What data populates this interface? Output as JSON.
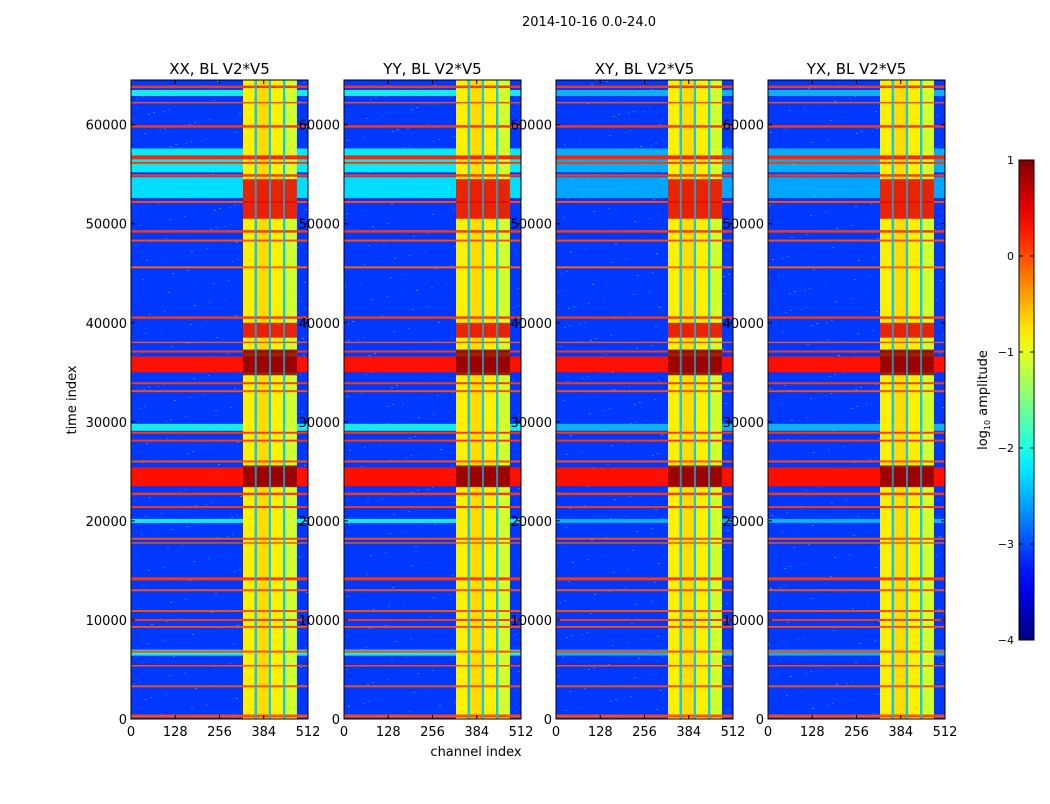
{
  "chart_data": {
    "type": "heatmap",
    "title": "2014-10-16 0.0-24.0",
    "xlabel": "channel index",
    "ylabel": "time index",
    "xlim": [
      0,
      512
    ],
    "ylim": [
      0,
      64512
    ],
    "xticks": [
      "0",
      "128",
      "256",
      "384",
      "512"
    ],
    "xtick_values": [
      0,
      128,
      256,
      384,
      512
    ],
    "yticks": [
      "0",
      "10000",
      "20000",
      "30000",
      "40000",
      "50000",
      "60000"
    ],
    "ytick_values": [
      0,
      10000,
      20000,
      30000,
      40000,
      50000,
      60000
    ],
    "panels": [
      {
        "title": "XX, BL V2*V5"
      },
      {
        "title": "YY, BL V2*V5"
      },
      {
        "title": "XY, BL V2*V5"
      },
      {
        "title": "YX, BL V2*V5"
      }
    ],
    "colormap": "jet",
    "colorbar": {
      "label": "log10 amplitude",
      "label_main": "log",
      "label_sub": "10",
      "label_rest": " amplitude",
      "range": [
        -4,
        1
      ],
      "ticks": [
        "1",
        "0",
        "−1",
        "−2",
        "−3",
        "−4"
      ],
      "tick_values": [
        1,
        0,
        -1,
        -2,
        -3,
        -4
      ]
    },
    "background_level": -3.1,
    "channel_columns": [
      {
        "c0": 324,
        "c1": 358,
        "level": -0.8
      },
      {
        "c0": 358,
        "c1": 364,
        "level": -2.3
      },
      {
        "c0": 364,
        "c1": 399,
        "level": -0.7
      },
      {
        "c0": 399,
        "c1": 405,
        "level": -2.3
      },
      {
        "c0": 405,
        "c1": 440,
        "level": -0.8
      },
      {
        "c0": 440,
        "c1": 446,
        "level": -2.3
      },
      {
        "c0": 446,
        "c1": 480,
        "level": -1.1
      }
    ],
    "cyan_rows": [
      {
        "t0": 62900,
        "t1": 63500,
        "level": -2.0
      },
      {
        "t0": 55200,
        "t1": 57600,
        "level": -2.1
      },
      {
        "t0": 52600,
        "t1": 54700,
        "level": -2.2
      },
      {
        "t0": 29100,
        "t1": 29800,
        "level": -2.0
      },
      {
        "t0": 19800,
        "t1": 20200,
        "level": -2.0
      },
      {
        "t0": 6400,
        "t1": 7000,
        "level": -2.0
      }
    ],
    "rfi_rows": [
      {
        "t0": 63700,
        "t1": 63950,
        "level": 0.1
      },
      {
        "t0": 62150,
        "t1": 62300,
        "level": 0.0
      },
      {
        "t0": 59700,
        "t1": 59950,
        "level": 0.1
      },
      {
        "t0": 56500,
        "t1": 56900,
        "level": 0.2
      },
      {
        "t0": 56050,
        "t1": 56250,
        "level": 0.1
      },
      {
        "t0": 54750,
        "t1": 55000,
        "level": 0.1
      },
      {
        "t0": 52100,
        "t1": 52300,
        "level": 0.0
      },
      {
        "t0": 49100,
        "t1": 49350,
        "level": 0.1
      },
      {
        "t0": 48200,
        "t1": 48400,
        "level": 0.0
      },
      {
        "t0": 45500,
        "t1": 45700,
        "level": -0.1
      },
      {
        "t0": 40400,
        "t1": 40650,
        "level": 0.1
      },
      {
        "t0": 37950,
        "t1": 38100,
        "level": 0.0
      },
      {
        "t0": 37000,
        "t1": 37200,
        "level": 0.1
      },
      {
        "t0": 35000,
        "t1": 36600,
        "level": 0.3
      },
      {
        "t0": 33800,
        "t1": 34000,
        "level": 0.1
      },
      {
        "t0": 33000,
        "t1": 33200,
        "level": 0.0
      },
      {
        "t0": 28800,
        "t1": 29000,
        "level": 0.1
      },
      {
        "t0": 28000,
        "t1": 28200,
        "level": 0.1
      },
      {
        "t0": 25900,
        "t1": 26100,
        "level": 0.0
      },
      {
        "t0": 23500,
        "t1": 25400,
        "level": 0.3
      },
      {
        "t0": 22600,
        "t1": 22850,
        "level": 0.1
      },
      {
        "t0": 21300,
        "t1": 21500,
        "level": 0.1
      },
      {
        "t0": 18100,
        "t1": 18300,
        "level": 0.0
      },
      {
        "t0": 17700,
        "t1": 17850,
        "level": 0.0
      },
      {
        "t0": 14000,
        "t1": 14300,
        "level": 0.1
      },
      {
        "t0": 12900,
        "t1": 13100,
        "level": 0.0
      },
      {
        "t0": 10800,
        "t1": 11000,
        "level": 0.0
      },
      {
        "t0": 9900,
        "t1": 10100,
        "level": 0.1
      },
      {
        "t0": 9200,
        "t1": 9400,
        "level": 0.0
      },
      {
        "t0": 6700,
        "t1": 6900,
        "level": 0.0
      },
      {
        "t0": 5300,
        "t1": 5450,
        "level": 0.0
      },
      {
        "t0": 3200,
        "t1": 3400,
        "level": 0.0
      },
      {
        "t0": 150,
        "t1": 450,
        "level": 0.0
      }
    ],
    "hot_rows": [
      {
        "t0": 34700,
        "t1": 37300,
        "c0": 324,
        "c1": 480,
        "level": 0.95
      },
      {
        "t0": 23400,
        "t1": 25600,
        "c0": 324,
        "c1": 480,
        "level": 0.95
      },
      {
        "t0": 50500,
        "t1": 54500,
        "c0": 324,
        "c1": 480,
        "level": 0.5
      },
      {
        "t0": 38500,
        "t1": 40000,
        "c0": 324,
        "c1": 480,
        "level": 0.5
      }
    ]
  }
}
